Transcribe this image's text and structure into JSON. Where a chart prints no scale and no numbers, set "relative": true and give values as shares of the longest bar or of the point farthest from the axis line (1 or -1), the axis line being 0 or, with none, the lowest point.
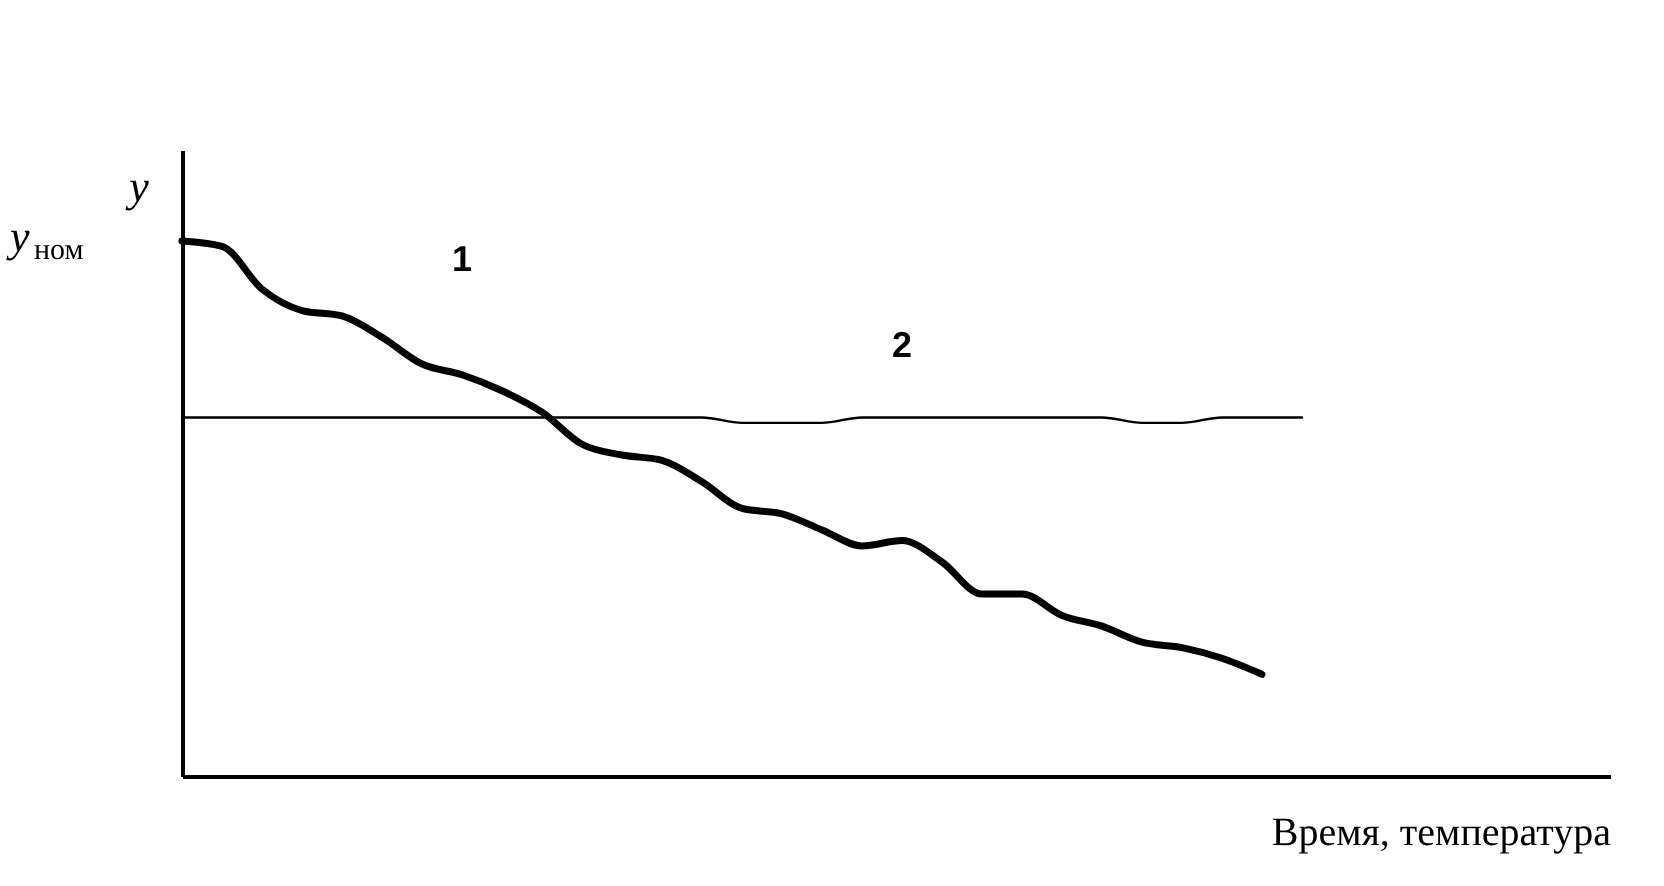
{
  "chart_data": {
    "type": "line",
    "relative": true,
    "xlabel": "Время, температура",
    "ylabel": "y",
    "annotations": [
      "y$_{ном}$"
    ],
    "grid": false,
    "marker": "none",
    "line_style": "solid",
    "categories": [
      null,
      null,
      null,
      null,
      null,
      null,
      null,
      null,
      null,
      null,
      null,
      null,
      null,
      null,
      null,
      null,
      null,
      null,
      null,
      null,
      null,
      null,
      null,
      null,
      null,
      null,
      null,
      null,
      null
    ],
    "series": [
      {
        "name": "1",
        "color": "#000000",
        "values": [
          1.0,
          0.99,
          0.91,
          0.87,
          0.86,
          0.82,
          0.77,
          0.75,
          0.72,
          0.68,
          0.62,
          0.6,
          0.59,
          0.55,
          0.5,
          0.49,
          0.46,
          0.43,
          0.44,
          0.4,
          0.34,
          0.34,
          0.3,
          0.28,
          0.25,
          0.24,
          0.22,
          0.19,
          null
        ]
      },
      {
        "name": "2",
        "color": "#000000",
        "values": [
          0.67,
          0.67,
          0.67,
          0.67,
          0.67,
          0.67,
          0.67,
          0.67,
          0.67,
          0.67,
          0.67,
          0.67,
          0.67,
          0.67,
          0.66,
          0.66,
          0.66,
          0.67,
          0.67,
          0.67,
          0.67,
          0.67,
          0.67,
          0.67,
          0.66,
          0.66,
          0.67,
          0.67,
          0.67
        ]
      }
    ]
  }
}
